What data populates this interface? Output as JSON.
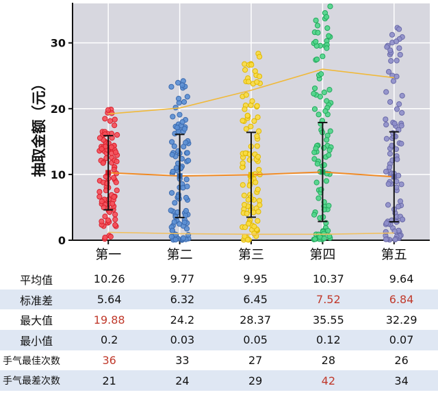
{
  "chart_data": {
    "type": "scatter",
    "ylabel": "抽取金额（元）",
    "ylim": [
      0,
      36
    ],
    "yticks": [
      0,
      10,
      20,
      30
    ],
    "grid": true,
    "categories": [
      "第一",
      "第二",
      "第三",
      "第四",
      "第五"
    ],
    "colors": {
      "fill": [
        "#f5505a",
        "#5b8fd4",
        "#f9dc43",
        "#4fd68a",
        "#8f8fca"
      ],
      "stroke": [
        "#d8202c",
        "#3a69ad",
        "#e0b800",
        "#22a85c",
        "#6a6aa8"
      ],
      "max_line": "#f0b93a",
      "mean_line": "#f08a24",
      "min_line": "#f0c060",
      "error_bar": "#111111"
    },
    "series": [
      {
        "name": "最大值",
        "values": [
          19.88,
          24.2,
          28.37,
          35.55,
          32.29
        ]
      },
      {
        "name": "平均值",
        "values": [
          10.26,
          9.77,
          9.95,
          10.37,
          9.64
        ]
      },
      {
        "name": "最小值",
        "values": [
          0.2,
          0.03,
          0.05,
          0.12,
          0.07
        ]
      },
      {
        "name": "标准差",
        "values": [
          5.64,
          6.32,
          6.45,
          7.52,
          6.84
        ]
      }
    ],
    "max_line_values": [
      19.2,
      20.1,
      22.8,
      26.0,
      24.7
    ],
    "min_line_values": [
      1.2,
      1.0,
      0.9,
      0.9,
      1.1
    ]
  },
  "table": {
    "columns": [
      "第一",
      "第二",
      "第三",
      "第四",
      "第五"
    ],
    "rows": [
      {
        "label": "平均值",
        "values": [
          "10.26",
          "9.77",
          "9.95",
          "10.37",
          "9.64"
        ],
        "highlight": []
      },
      {
        "label": "标准差",
        "values": [
          "5.64",
          "6.32",
          "6.45",
          "7.52",
          "6.84"
        ],
        "highlight": [
          3,
          4
        ]
      },
      {
        "label": "最大值",
        "values": [
          "19.88",
          "24.2",
          "28.37",
          "35.55",
          "32.29"
        ],
        "highlight": [
          0
        ]
      },
      {
        "label": "最小值",
        "values": [
          "0.2",
          "0.03",
          "0.05",
          "0.12",
          "0.07"
        ],
        "highlight": []
      },
      {
        "label": "手气最佳次数",
        "values": [
          "36",
          "33",
          "27",
          "28",
          "26"
        ],
        "highlight": [
          0
        ]
      },
      {
        "label": "手气最差次数",
        "values": [
          "21",
          "24",
          "29",
          "42",
          "34"
        ],
        "highlight": [
          3
        ]
      }
    ],
    "highlight_color": "#c0392b"
  }
}
